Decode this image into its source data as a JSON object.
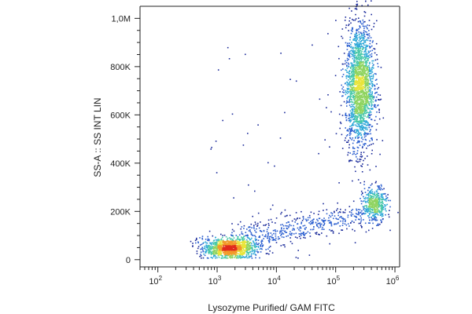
{
  "chart_data": {
    "type": "scatter",
    "subtype": "flow-cytometry-density-dot-plot",
    "title": "",
    "xlabel": "Lysozyme Purified/ GAM FITC",
    "ylabel": "SS-A :: SS INT LIN",
    "x_scale": "log",
    "x_range": [
      50,
      1200000
    ],
    "x_ticks": [
      {
        "value": 100,
        "base": "10",
        "exp": "2"
      },
      {
        "value": 1000,
        "base": "10",
        "exp": "3"
      },
      {
        "value": 10000,
        "base": "10",
        "exp": "4"
      },
      {
        "value": 100000,
        "base": "10",
        "exp": "5"
      },
      {
        "value": 1000000,
        "base": "10",
        "exp": "6"
      }
    ],
    "y_scale": "linear",
    "y_range": [
      -30000,
      1050000
    ],
    "y_ticks": [
      {
        "value": 0,
        "label": "0"
      },
      {
        "value": 200000,
        "label": "200K"
      },
      {
        "value": 400000,
        "label": "400K"
      },
      {
        "value": 600000,
        "label": "600K"
      },
      {
        "value": 800000,
        "label": "800K"
      },
      {
        "value": 1000000,
        "label": "1,0M"
      }
    ],
    "grid": false,
    "legend": "none",
    "colormap": [
      "#1a2a9a",
      "#2b5fd0",
      "#2fa8d8",
      "#49c9a8",
      "#8fd460",
      "#e8e43a",
      "#f29a2a",
      "#e02a1c"
    ],
    "populations": [
      {
        "name": "low-fluorescence population",
        "x_center": 1600,
        "y_center": 50000,
        "x_spread_decades": 0.22,
        "y_spread": 20000,
        "count": 1200
      },
      {
        "name": "high side-scatter population",
        "x_center": 250000,
        "y_center": 720000,
        "x_spread_decades": 0.12,
        "y_spread": 130000,
        "count": 2000
      },
      {
        "name": "intermediate population",
        "x_center": 450000,
        "y_center": 230000,
        "x_spread_decades": 0.1,
        "y_spread": 35000,
        "count": 450
      },
      {
        "name": "bridge events",
        "x_start": 2000,
        "x_end": 400000,
        "y_start": 80000,
        "y_end": 200000,
        "count": 500
      },
      {
        "name": "sparse background events",
        "count": 60
      }
    ]
  }
}
